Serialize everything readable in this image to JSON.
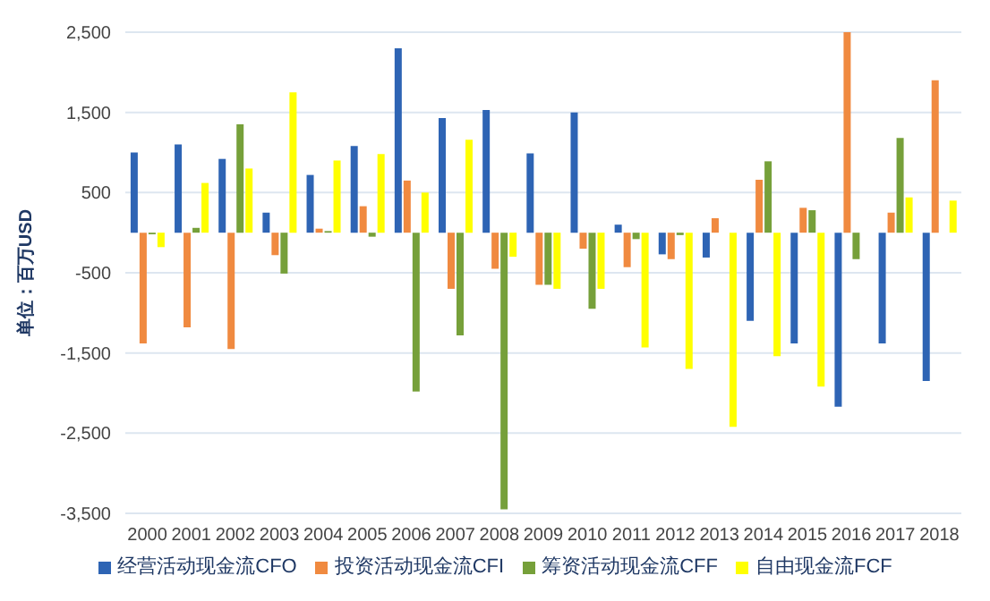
{
  "chart_data": {
    "type": "bar",
    "ylabel": "单位：百万USD",
    "categories": [
      "2000",
      "2001",
      "2002",
      "2003",
      "2004",
      "2005",
      "2006",
      "2007",
      "2008",
      "2009",
      "2010",
      "2011",
      "2012",
      "2013",
      "2014",
      "2015",
      "2016",
      "2017",
      "2018"
    ],
    "series": [
      {
        "name": "经营活动现金流CFO",
        "color": "#2e64b4",
        "values": [
          1000,
          1100,
          920,
          250,
          720,
          1080,
          2300,
          1430,
          1530,
          990,
          1500,
          100,
          -270,
          -310,
          -1100,
          -1380,
          -2170,
          -1380,
          -1850
        ]
      },
      {
        "name": "投资活动现金流CFI",
        "color": "#f08a40",
        "values": [
          -1380,
          -1180,
          -1450,
          -280,
          50,
          330,
          650,
          -700,
          -450,
          -650,
          -200,
          -430,
          -330,
          180,
          660,
          310,
          2500,
          250,
          1900
        ]
      },
      {
        "name": "筹资活动现金流CFF",
        "color": "#76a03a",
        "values": [
          -20,
          60,
          1350,
          -510,
          20,
          -50,
          -1980,
          -1280,
          -3450,
          -650,
          -950,
          -80,
          -30,
          0,
          890,
          280,
          -330,
          1180,
          0
        ]
      },
      {
        "name": "自由现金流FCF",
        "color": "#ffff00",
        "values": [
          -180,
          620,
          800,
          1750,
          900,
          980,
          500,
          1160,
          -300,
          -700,
          -700,
          -1430,
          -1700,
          -2420,
          -1540,
          -1920,
          0,
          440,
          400
        ]
      }
    ],
    "ylim": [
      -3500,
      2500
    ],
    "yticks": [
      {
        "value": -3500,
        "label": "-3,500"
      },
      {
        "value": -2500,
        "label": "-2,500"
      },
      {
        "value": -1500,
        "label": "-1,500"
      },
      {
        "value": -500,
        "label": "-500"
      },
      {
        "value": 500,
        "label": "500"
      },
      {
        "value": 1500,
        "label": "1,500"
      },
      {
        "value": 2500,
        "label": "2,500"
      }
    ],
    "grid": "y",
    "legend": "bottom"
  }
}
